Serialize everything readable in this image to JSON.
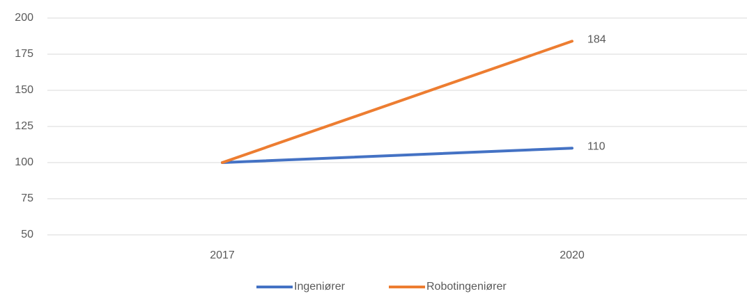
{
  "chart_data": {
    "type": "line",
    "categories": [
      "2017",
      "2020"
    ],
    "series": [
      {
        "name": "Ingeniører",
        "color": "#4472c4",
        "values": [
          100,
          110
        ]
      },
      {
        "name": "Robotingeniører",
        "color": "#ed7d31",
        "values": [
          100,
          184
        ]
      }
    ],
    "ylim": [
      50,
      200
    ],
    "yticks": [
      50,
      75,
      100,
      125,
      150,
      175,
      200
    ],
    "grid": true,
    "legend": "bottom"
  }
}
